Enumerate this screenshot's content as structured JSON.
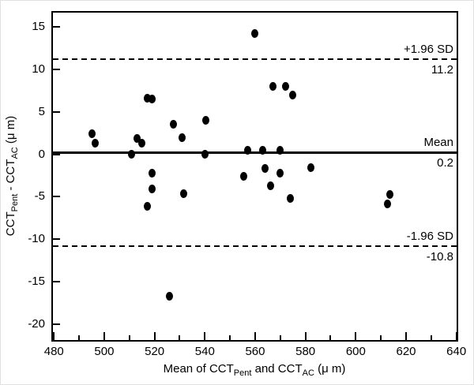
{
  "figure": {
    "background": "#ffffff",
    "foreground": "#000000"
  },
  "chart_data": {
    "type": "scatter",
    "title": "",
    "xlabel_parts": [
      {
        "text": "Mean of CCT",
        "sub": false
      },
      {
        "text": "Pent",
        "sub": true
      },
      {
        "text": " and CCT",
        "sub": false
      },
      {
        "text": "AC",
        "sub": true
      },
      {
        "text": " (μ m)",
        "sub": false
      }
    ],
    "ylabel_parts": [
      {
        "text": "CCT",
        "sub": false
      },
      {
        "text": "Pent",
        "sub": true
      },
      {
        "text": " - CCT",
        "sub": false
      },
      {
        "text": "AC",
        "sub": true
      },
      {
        "text": " (μ m)",
        "sub": false
      }
    ],
    "xlim": [
      479.6,
      640.1
    ],
    "ylim": [
      -21.9,
      16.7
    ],
    "x_major_ticks": [
      480,
      500,
      520,
      540,
      560,
      580,
      600,
      620,
      640
    ],
    "x_minor_ticks": [
      490,
      510,
      530,
      550,
      570,
      590,
      610,
      630
    ],
    "y_major_ticks": [
      15,
      10,
      5,
      0,
      -5,
      -10,
      -15,
      -20
    ],
    "grid": false,
    "legend": "none",
    "marker": {
      "color": "#000000",
      "width": 9,
      "height": 11
    },
    "ref_lines": [
      {
        "value": 11.2,
        "style": "dashed",
        "label_above": "+1.96 SD",
        "label_below": "11.2"
      },
      {
        "value": 0.2,
        "style": "solid",
        "label_above": "Mean",
        "label_below": "0.2"
      },
      {
        "value": -10.8,
        "style": "dashed",
        "label_above": "-1.96 SD",
        "label_below": "-10.8"
      }
    ],
    "points": [
      [
        495,
        2.4
      ],
      [
        496.5,
        1.3
      ],
      [
        511,
        0.0
      ],
      [
        513,
        1.9
      ],
      [
        515,
        1.3
      ],
      [
        517,
        6.6
      ],
      [
        519,
        6.5
      ],
      [
        517,
        -6.1
      ],
      [
        519,
        -2.2
      ],
      [
        519,
        -4.1
      ],
      [
        526,
        -16.7
      ],
      [
        527.5,
        3.5
      ],
      [
        531,
        2.0
      ],
      [
        531.5,
        -4.6
      ],
      [
        540,
        0.0
      ],
      [
        540.5,
        4.0
      ],
      [
        555.5,
        -2.6
      ],
      [
        557,
        0.5
      ],
      [
        560,
        14.2
      ],
      [
        563,
        0.5
      ],
      [
        564,
        -1.7
      ],
      [
        566,
        -3.7
      ],
      [
        567,
        8.0
      ],
      [
        570,
        0.5
      ],
      [
        570,
        -2.2
      ],
      [
        572,
        8.0
      ],
      [
        574,
        -5.2
      ],
      [
        575,
        7.0
      ],
      [
        582,
        -1.6
      ],
      [
        612.5,
        -5.9
      ],
      [
        613.5,
        -4.7
      ]
    ]
  }
}
